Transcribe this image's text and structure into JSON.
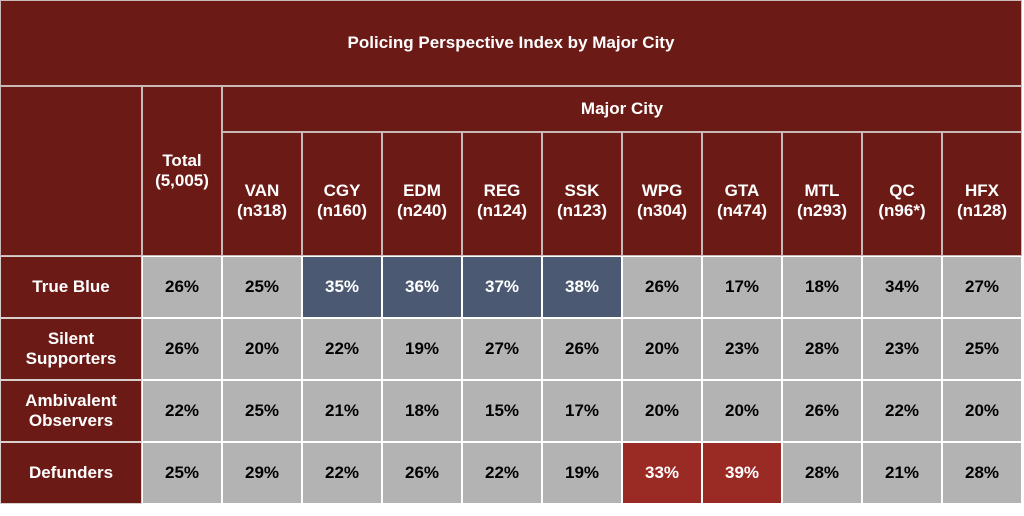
{
  "chart_data": {
    "type": "table",
    "title": "Policing Perspective Index by Major City",
    "group_header": "Major City",
    "total_header": "Total\n(5,005)",
    "columns": [
      {
        "code": "VAN",
        "n": "(n318)"
      },
      {
        "code": "CGY",
        "n": "(n160)"
      },
      {
        "code": "EDM",
        "n": "(n240)"
      },
      {
        "code": "REG",
        "n": "(n124)"
      },
      {
        "code": "SSK",
        "n": "(n123)"
      },
      {
        "code": "WPG",
        "n": "(n304)"
      },
      {
        "code": "GTA",
        "n": "(n474)"
      },
      {
        "code": "MTL",
        "n": "(n293)"
      },
      {
        "code": "QC",
        "n": "(n96*)"
      },
      {
        "code": "HFX",
        "n": "(n128)"
      }
    ],
    "rows": [
      {
        "label": "True Blue",
        "values": [
          "26%",
          "25%",
          "35%",
          "36%",
          "37%",
          "38%",
          "26%",
          "17%",
          "18%",
          "34%",
          "27%"
        ]
      },
      {
        "label": "Silent\nSupporters",
        "values": [
          "26%",
          "20%",
          "22%",
          "19%",
          "27%",
          "26%",
          "20%",
          "23%",
          "28%",
          "23%",
          "25%"
        ]
      },
      {
        "label": "Ambivalent\nObservers",
        "values": [
          "22%",
          "25%",
          "21%",
          "18%",
          "15%",
          "17%",
          "20%",
          "20%",
          "26%",
          "22%",
          "20%"
        ]
      },
      {
        "label": "Defunders",
        "values": [
          "25%",
          "29%",
          "22%",
          "26%",
          "22%",
          "19%",
          "33%",
          "39%",
          "28%",
          "21%",
          "28%"
        ]
      }
    ],
    "highlights": [
      {
        "row": 0,
        "col": 2,
        "color": "#4b5a72"
      },
      {
        "row": 0,
        "col": 3,
        "color": "#4b5a72"
      },
      {
        "row": 0,
        "col": 4,
        "color": "#4b5a72"
      },
      {
        "row": 0,
        "col": 5,
        "color": "#4b5a72"
      },
      {
        "row": 3,
        "col": 6,
        "color": "#9a2a24"
      },
      {
        "row": 3,
        "col": 7,
        "color": "#9a2a24"
      }
    ]
  },
  "colors": {
    "header_bg": "#6b1a16",
    "data_bg": "#b3b3b3",
    "highlight_blue": "#4b5a72",
    "highlight_red": "#9a2a24"
  }
}
